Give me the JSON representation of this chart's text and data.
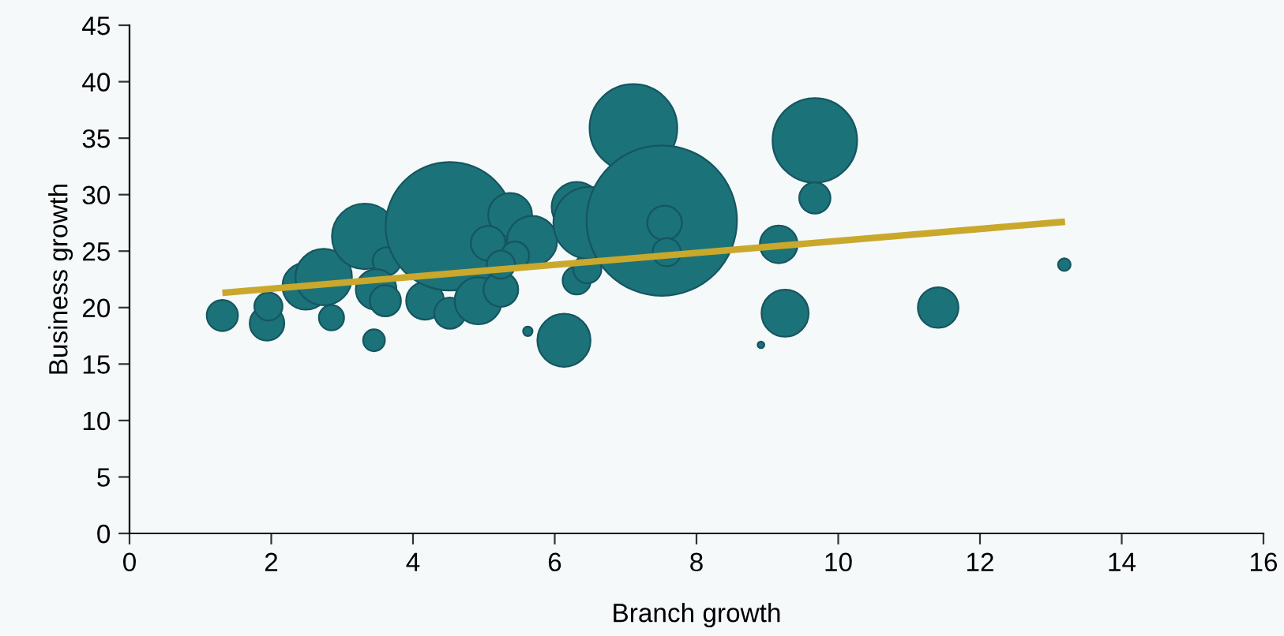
{
  "chart_data": {
    "type": "bubble",
    "xlabel": "Branch growth",
    "ylabel": "Business growth",
    "xlim": [
      0,
      16
    ],
    "xticks": [
      0,
      2,
      4,
      6,
      8,
      10,
      12,
      14,
      16
    ],
    "ylim": [
      0,
      45
    ],
    "yticks": [
      0,
      5,
      10,
      15,
      20,
      25,
      30,
      35,
      40,
      45
    ],
    "grid": false,
    "series": [
      {
        "color": "#1c7279",
        "x": [
          1.31,
          1.94,
          1.96,
          2.49,
          2.74,
          2.85,
          3.45,
          3.32,
          3.63,
          3.48,
          3.61,
          4.17,
          4.52,
          4.52,
          4.92,
          5.37,
          5.06,
          5.68,
          5.44,
          5.24,
          5.24,
          5.62,
          6.13,
          6.31,
          6.46,
          6.31,
          6.49,
          7.11,
          7.51,
          7.55,
          7.58,
          9.16,
          9.25,
          8.91,
          9.67,
          9.67,
          11.41,
          13.19
        ],
        "values": [
          19.3,
          18.6,
          20.1,
          21.9,
          22.7,
          19.1,
          17.1,
          26.3,
          24.1,
          21.6,
          20.6,
          20.6,
          19.5,
          27.2,
          20.6,
          28.2,
          25.7,
          25.9,
          24.6,
          21.6,
          23.8,
          17.9,
          17.1,
          22.4,
          23.4,
          28.9,
          27.5,
          35.9,
          27.7,
          27.5,
          24.9,
          25.6,
          19.5,
          16.7,
          34.8,
          29.7,
          20.0,
          23.8
        ],
        "sizes": [
          0.043,
          0.053,
          0.035,
          0.098,
          0.141,
          0.028,
          0.021,
          0.191,
          0.035,
          0.073,
          0.043,
          0.063,
          0.043,
          0.73,
          0.098,
          0.085,
          0.053,
          0.111,
          0.035,
          0.053,
          0.035,
          0.004,
          0.125,
          0.035,
          0.035,
          0.111,
          0.23,
          0.34,
          1,
          0.053,
          0.035,
          0.063,
          0.098,
          0.002,
          0.316,
          0.043,
          0.073,
          0.007
        ]
      },
      {
        "type": "line",
        "color": "#c9a82c",
        "x": [
          1.31,
          13.2
        ],
        "values": [
          21.3,
          27.6
        ]
      }
    ]
  }
}
